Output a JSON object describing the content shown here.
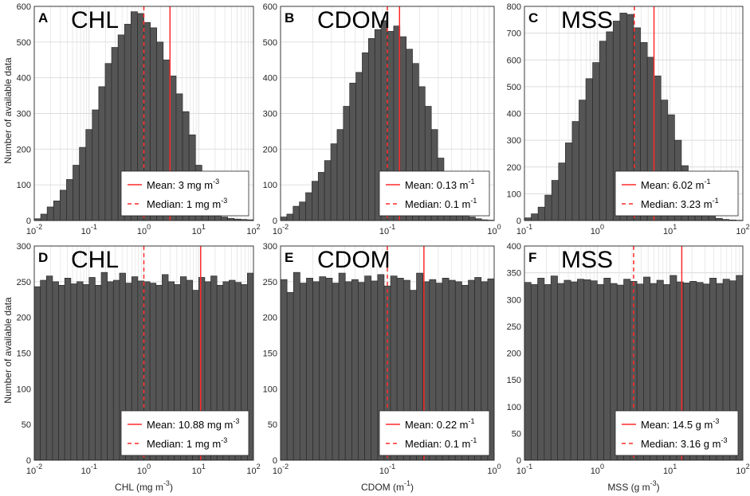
{
  "figure": {
    "ylabel": "Number of available data"
  },
  "colors": {
    "bar_fill": "#555555",
    "bar_edge": "#2b2b2b",
    "mean_line": "#ff2a2a",
    "median_line": "#ff2a2a",
    "grid": "#dcdcdc",
    "axis": "#262626"
  },
  "chart_data": [
    {
      "id": "A",
      "type": "bar",
      "letter": "A",
      "title": "CHL",
      "xscale": "log",
      "xlim": [
        0.01,
        100
      ],
      "ylim": [
        0,
        600
      ],
      "xtick_exps": [
        -2,
        -1,
        0,
        1,
        2
      ],
      "yticks": [
        0,
        100,
        200,
        300,
        400,
        500,
        600
      ],
      "xlabel": null,
      "values": [
        5,
        18,
        38,
        55,
        85,
        115,
        155,
        205,
        255,
        310,
        375,
        440,
        485,
        520,
        550,
        585,
        580,
        555,
        540,
        500,
        450,
        405,
        355,
        305,
        240,
        155,
        80,
        48,
        22,
        10,
        6,
        4,
        3,
        2
      ],
      "mean": 3,
      "median": 1,
      "legend": {
        "mean_text": "Mean: 3 mg m",
        "mean_sup": "-3",
        "median_text": "Median: 1 mg m",
        "median_sup": "-3"
      }
    },
    {
      "id": "B",
      "type": "bar",
      "letter": "B",
      "title": "CDOM",
      "xscale": "log",
      "xlim": [
        0.01,
        1
      ],
      "ylim": [
        0,
        600
      ],
      "xtick_exps": [
        -2,
        -1,
        0
      ],
      "yticks": [
        0,
        100,
        200,
        300,
        400,
        500,
        600
      ],
      "xlabel": null,
      "values": [
        10,
        18,
        40,
        52,
        78,
        110,
        135,
        168,
        215,
        255,
        320,
        385,
        415,
        470,
        510,
        535,
        560,
        530,
        545,
        515,
        480,
        440,
        375,
        320,
        255,
        175,
        100,
        58,
        30,
        18,
        10,
        5,
        2,
        1
      ],
      "mean": 0.13,
      "median": 0.1,
      "legend": {
        "mean_text": "Mean: 0.13 m",
        "mean_sup": "-1",
        "median_text": "Median: 0.1 m",
        "median_sup": "-1"
      }
    },
    {
      "id": "C",
      "type": "bar",
      "letter": "C",
      "title": "MSS",
      "xscale": "log",
      "xlim": [
        0.1,
        100
      ],
      "ylim": [
        0,
        800
      ],
      "xtick_exps": [
        -1,
        0,
        1,
        2
      ],
      "yticks": [
        0,
        100,
        200,
        300,
        400,
        500,
        600,
        700,
        800
      ],
      "xlabel": null,
      "values": [
        10,
        25,
        50,
        95,
        150,
        215,
        290,
        370,
        450,
        530,
        590,
        670,
        705,
        745,
        775,
        770,
        720,
        665,
        610,
        540,
        450,
        395,
        300,
        205,
        150,
        75,
        35,
        15,
        8,
        4,
        2,
        1
      ],
      "mean": 6.02,
      "median": 3.23,
      "legend": {
        "mean_text": "Mean: 6.02 m",
        "mean_sup": "-1",
        "median_text": "Median: 3.23 m",
        "median_sup": "-1"
      }
    },
    {
      "id": "D",
      "type": "bar",
      "letter": "D",
      "title": "CHL",
      "xscale": "log",
      "xlim": [
        0.01,
        100
      ],
      "ylim": [
        0,
        300
      ],
      "xtick_exps": [
        -2,
        -1,
        0,
        1,
        2
      ],
      "yticks": [
        0,
        50,
        100,
        150,
        200,
        250,
        300
      ],
      "xlabel": "CHL (mg m",
      "xlabel_sup": "-3",
      "xlabel_tail": ")",
      "values": [
        243,
        252,
        258,
        250,
        245,
        255,
        247,
        250,
        246,
        256,
        245,
        263,
        250,
        252,
        262,
        248,
        257,
        251,
        250,
        248,
        245,
        260,
        250,
        246,
        257,
        252,
        238,
        256,
        250,
        258,
        245,
        250,
        252,
        249,
        246,
        262
      ],
      "mean": 10.88,
      "median": 1,
      "legend": {
        "mean_text": "Mean: 10.88 mg m",
        "mean_sup": "-3",
        "median_text": "Median: 1 mg m",
        "median_sup": "-3"
      }
    },
    {
      "id": "E",
      "type": "bar",
      "letter": "E",
      "title": "CDOM",
      "xscale": "log",
      "xlim": [
        0.01,
        1
      ],
      "ylim": [
        0,
        300
      ],
      "xtick_exps": [
        -2,
        -1,
        0
      ],
      "yticks": [
        0,
        50,
        100,
        150,
        200,
        250,
        300
      ],
      "xlabel": "CDOM (m",
      "xlabel_sup": "-1",
      "xlabel_tail": ")",
      "values": [
        253,
        235,
        263,
        248,
        255,
        250,
        257,
        255,
        248,
        262,
        250,
        253,
        249,
        258,
        251,
        260,
        244,
        258,
        255,
        252,
        238,
        262,
        250,
        253,
        248,
        255,
        252,
        250,
        245,
        252,
        256,
        250,
        254
      ],
      "mean": 0.22,
      "median": 0.1,
      "legend": {
        "mean_text": "Mean: 0.22 m",
        "mean_sup": "-1",
        "median_text": "Median: 0.1 m",
        "median_sup": "-1"
      }
    },
    {
      "id": "F",
      "type": "bar",
      "letter": "F",
      "title": "MSS",
      "xscale": "log",
      "xlim": [
        0.1,
        100
      ],
      "ylim": [
        0,
        400
      ],
      "xtick_exps": [
        -1,
        0,
        1,
        2
      ],
      "yticks": [
        0,
        50,
        100,
        150,
        200,
        250,
        300,
        350,
        400
      ],
      "xlabel": "MSS (g m",
      "xlabel_sup": "-3",
      "xlabel_tail": ")",
      "values": [
        332,
        328,
        340,
        328,
        344,
        330,
        336,
        333,
        338,
        337,
        335,
        328,
        340,
        330,
        327,
        338,
        334,
        329,
        342,
        330,
        336,
        328,
        345,
        333,
        331,
        334,
        332,
        329,
        340,
        330,
        338,
        335,
        345
      ],
      "mean": 14.5,
      "median": 3.16,
      "legend": {
        "mean_text": "Mean: 14.5 g m",
        "mean_sup": "-3",
        "median_text": "Median: 3.16 g m",
        "median_sup": "-3"
      }
    }
  ]
}
